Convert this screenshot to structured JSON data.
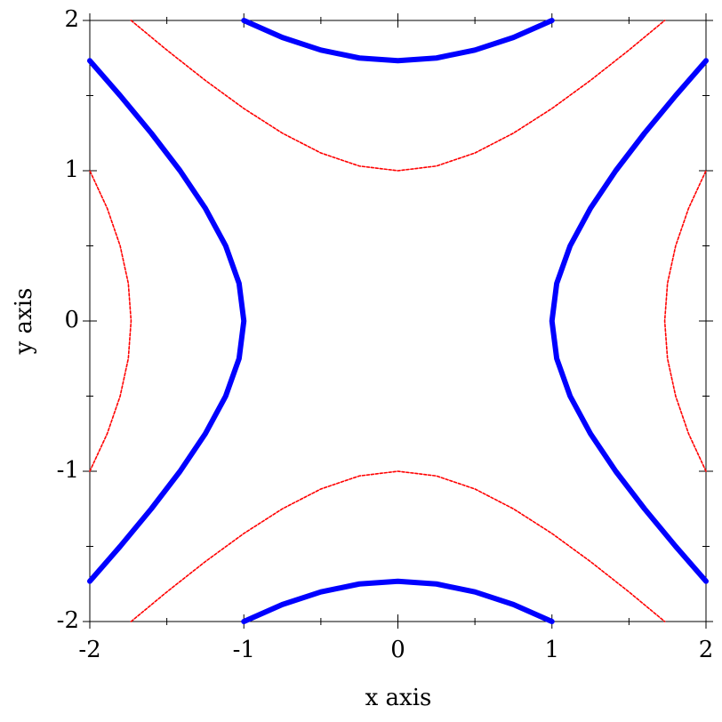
{
  "chart_data": {
    "type": "line",
    "xlabel": "x axis",
    "ylabel": "y axis",
    "xlim": [
      -2,
      2
    ],
    "ylim": [
      -2,
      2
    ],
    "xticks": [
      -2,
      -1,
      0,
      1,
      2
    ],
    "yticks": [
      -2,
      -1,
      0,
      1,
      2
    ],
    "xminorticks": [
      -1.5,
      -0.5,
      0.5,
      1.5
    ],
    "yminorticks": [
      -1.5,
      -0.5,
      0.5,
      1.5
    ],
    "series": [
      {
        "color": "#0000ff",
        "style": "solid",
        "x": [
          2.0,
          1.803,
          1.601,
          1.414,
          1.25,
          1.118,
          1.031,
          1,
          1.031,
          1.118,
          1.25,
          1.414,
          1.601,
          1.803,
          2.0,
          null,
          -2.0,
          -1.803,
          -1.601,
          -1.414,
          -1.25,
          -1.118,
          -1.031,
          -1,
          -1.031,
          -1.118,
          -1.25,
          -1.414,
          -1.601,
          -1.803,
          -2.0,
          null,
          -1,
          -0.75,
          -0.5,
          -0.25,
          0,
          0.25,
          0.5,
          0.75,
          1,
          null,
          -1,
          -0.75,
          -0.5,
          -0.25,
          0,
          0.25,
          0.5,
          0.75,
          1
        ],
        "y": [
          -1.732,
          -1.5,
          -1.25,
          -1,
          -0.75,
          -0.5,
          -0.25,
          0,
          0.25,
          0.5,
          0.75,
          1,
          1.25,
          1.5,
          1.732,
          null,
          -1.732,
          -1.5,
          -1.25,
          -1,
          -0.75,
          -0.5,
          -0.25,
          0,
          0.25,
          0.5,
          0.75,
          1,
          1.25,
          1.5,
          1.732,
          null,
          2,
          1.887,
          1.803,
          1.75,
          1.732,
          1.75,
          1.803,
          1.887,
          2,
          null,
          -2,
          -1.887,
          -1.803,
          -1.75,
          -1.732,
          -1.75,
          -1.803,
          -1.887,
          -2
        ]
      },
      {
        "color": "#ff0000",
        "style": "dotted",
        "x": [
          -1.732,
          -1.5,
          -1.25,
          -1,
          -0.75,
          -0.5,
          -0.25,
          0,
          0.25,
          0.5,
          0.75,
          1,
          1.25,
          1.5,
          1.732,
          null,
          -1.732,
          -1.5,
          -1.25,
          -1,
          -0.75,
          -0.5,
          -0.25,
          0,
          0.25,
          0.5,
          0.75,
          1,
          1.25,
          1.5,
          1.732,
          null,
          2,
          1.887,
          1.803,
          1.75,
          1.732,
          1.75,
          1.803,
          1.887,
          2,
          null,
          -2,
          -1.887,
          -1.803,
          -1.75,
          -1.732,
          -1.75,
          -1.803,
          -1.887,
          -2
        ],
        "y": [
          2.0,
          1.803,
          1.601,
          1.414,
          1.25,
          1.118,
          1.031,
          1,
          1.031,
          1.118,
          1.25,
          1.414,
          1.601,
          1.803,
          2.0,
          null,
          -2.0,
          -1.803,
          -1.601,
          -1.414,
          -1.25,
          -1.118,
          -1.031,
          -1,
          -1.031,
          -1.118,
          -1.25,
          -1.414,
          -1.601,
          -1.803,
          -2.0,
          null,
          -1,
          -0.75,
          -0.5,
          -0.25,
          0,
          0.25,
          0.5,
          0.75,
          1,
          null,
          -1,
          -0.75,
          -0.5,
          -0.25,
          0,
          0.25,
          0.5,
          0.75,
          1
        ]
      }
    ]
  }
}
